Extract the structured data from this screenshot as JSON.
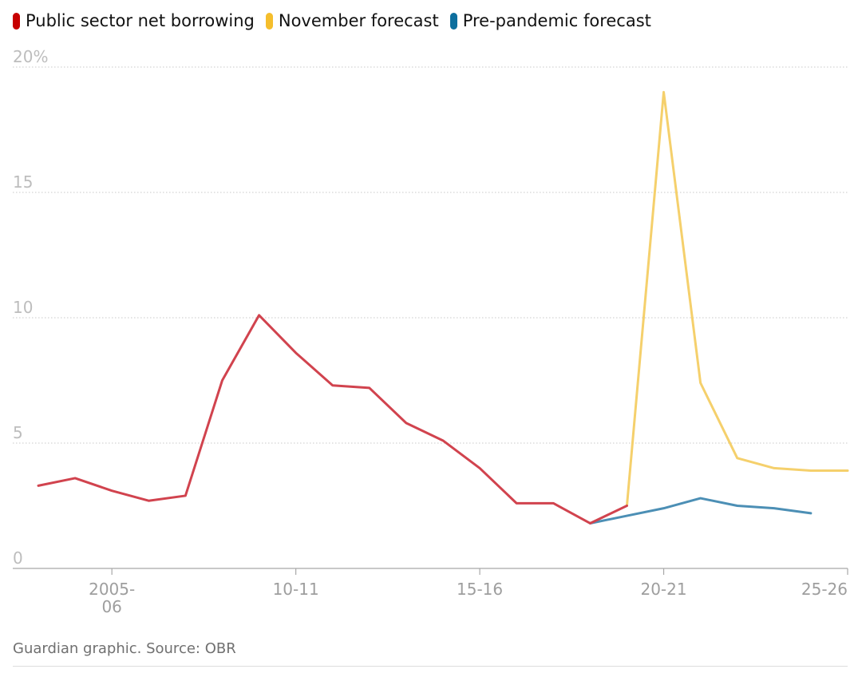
{
  "chart_data": {
    "type": "line",
    "title": "",
    "xlabel": "",
    "ylabel": "",
    "y_unit_suffix": "%",
    "ylim": [
      0,
      20
    ],
    "y_ticks": [
      0,
      5,
      10,
      15,
      20
    ],
    "y_tick_labels": [
      "0",
      "5",
      "10",
      "15",
      "20%"
    ],
    "x_range": [
      2003,
      2025
    ],
    "x_ticks": [
      {
        "x": 2005,
        "label": [
          "2005-",
          "06"
        ]
      },
      {
        "x": 2010,
        "label": [
          "10-11"
        ]
      },
      {
        "x": 2015,
        "label": [
          "15-16"
        ]
      },
      {
        "x": 2020,
        "label": [
          "20-21"
        ]
      },
      {
        "x": 2025,
        "label": [
          "25-26"
        ]
      }
    ],
    "grid": true,
    "legend_position": "top-left",
    "series": [
      {
        "name": "Public sector net borrowing",
        "color": "#d1434e",
        "points": [
          [
            2003,
            3.3
          ],
          [
            2004,
            3.6
          ],
          [
            2005,
            3.1
          ],
          [
            2006,
            2.7
          ],
          [
            2007,
            2.9
          ],
          [
            2008,
            7.5
          ],
          [
            2009,
            10.1
          ],
          [
            2010,
            8.6
          ],
          [
            2011,
            7.3
          ],
          [
            2012,
            7.2
          ],
          [
            2013,
            5.8
          ],
          [
            2014,
            5.1
          ],
          [
            2015,
            4.0
          ],
          [
            2016,
            2.6
          ],
          [
            2017,
            2.6
          ],
          [
            2018,
            1.8
          ],
          [
            2019,
            2.5
          ]
        ]
      },
      {
        "name": "November forecast",
        "color": "#f5d06c",
        "points": [
          [
            2019,
            2.5
          ],
          [
            2020,
            19.0
          ],
          [
            2021,
            7.4
          ],
          [
            2022,
            4.4
          ],
          [
            2023,
            4.0
          ],
          [
            2024,
            3.9
          ],
          [
            2025,
            3.9
          ]
        ]
      },
      {
        "name": "Pre-pandemic forecast",
        "color": "#4c8fb5",
        "points": [
          [
            2018,
            1.8
          ],
          [
            2019,
            2.1
          ],
          [
            2020,
            2.4
          ],
          [
            2021,
            2.8
          ],
          [
            2022,
            2.5
          ],
          [
            2023,
            2.4
          ],
          [
            2024,
            2.2
          ]
        ]
      }
    ]
  },
  "legend": [
    {
      "label": "Public sector net borrowing",
      "color": "#c70000"
    },
    {
      "label": "November forecast",
      "color": "#f5be2c"
    },
    {
      "label": "Pre-pandemic forecast",
      "color": "#0d6f9e"
    }
  ],
  "footer": {
    "source": "Guardian graphic. Source: OBR"
  }
}
